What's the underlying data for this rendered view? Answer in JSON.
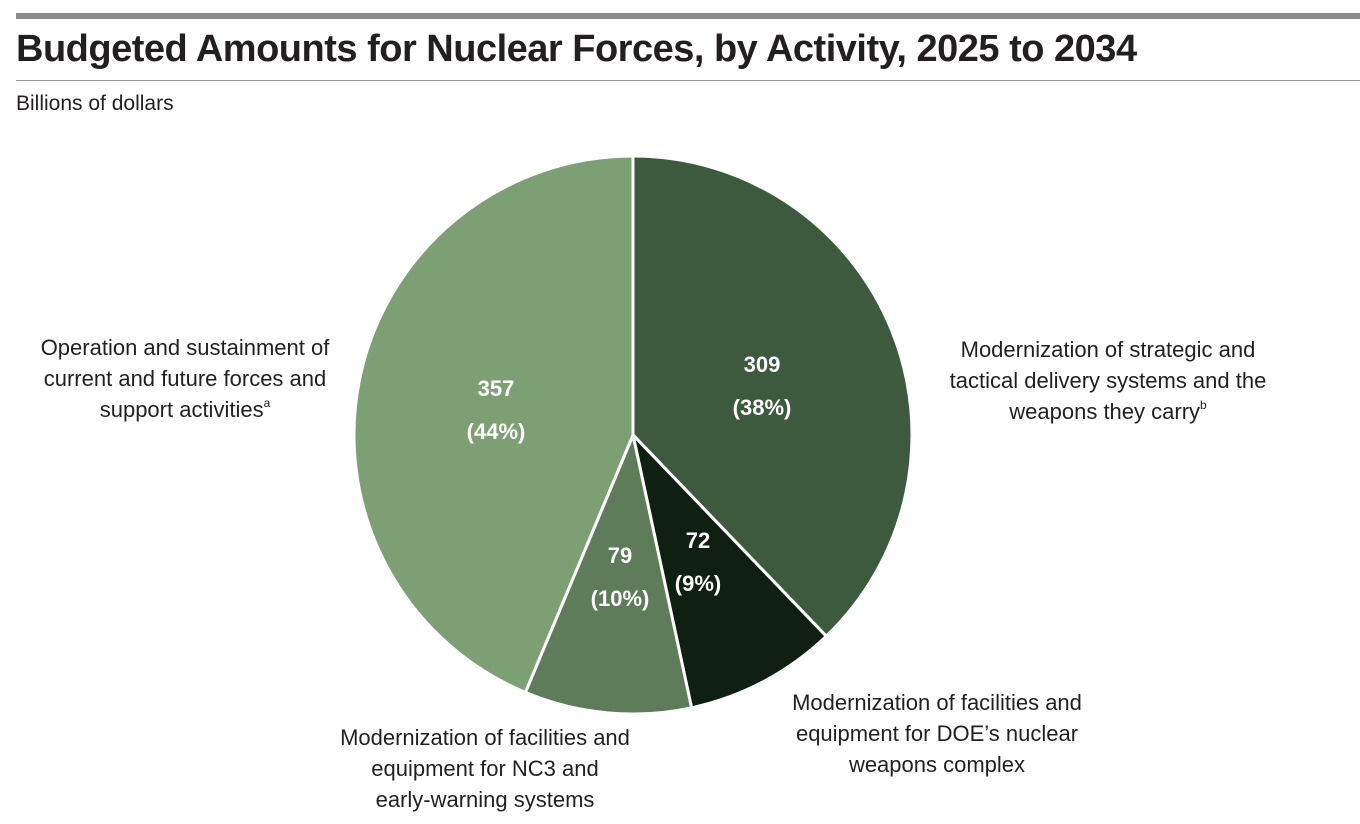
{
  "header": {
    "title": "Budgeted Amounts for Nuclear Forces, by Activity, 2025 to 2034",
    "subtitle": "Billions of dollars"
  },
  "chart_data": {
    "type": "pie",
    "title": "Budgeted Amounts for Nuclear Forces, by Activity, 2025 to 2034",
    "unit": "Billions of dollars",
    "slices": [
      {
        "label_lines": [
          "Modernization of strategic and",
          "tactical delivery systems and the",
          "weapons they carry"
        ],
        "footnote": "b",
        "value": 309,
        "percent_label": "(38%)",
        "color": "#3d5a3e"
      },
      {
        "label_lines": [
          "Modernization of facilities and",
          "equipment for DOE’s nuclear",
          "weapons complex"
        ],
        "footnote": "",
        "value": 72,
        "percent_label": "(9%)",
        "color": "#0f1f12"
      },
      {
        "label_lines": [
          "Modernization of facilities and",
          "equipment for NC3 and",
          "early-warning systems"
        ],
        "footnote": "",
        "value": 79,
        "percent_label": "(10%)",
        "color": "#5e7b5a"
      },
      {
        "label_lines": [
          "Operation and sustainment of",
          "current and future forces and",
          "support activities"
        ],
        "footnote": "a",
        "value": 357,
        "percent_label": "(44%)",
        "color": "#7ca074"
      }
    ]
  }
}
